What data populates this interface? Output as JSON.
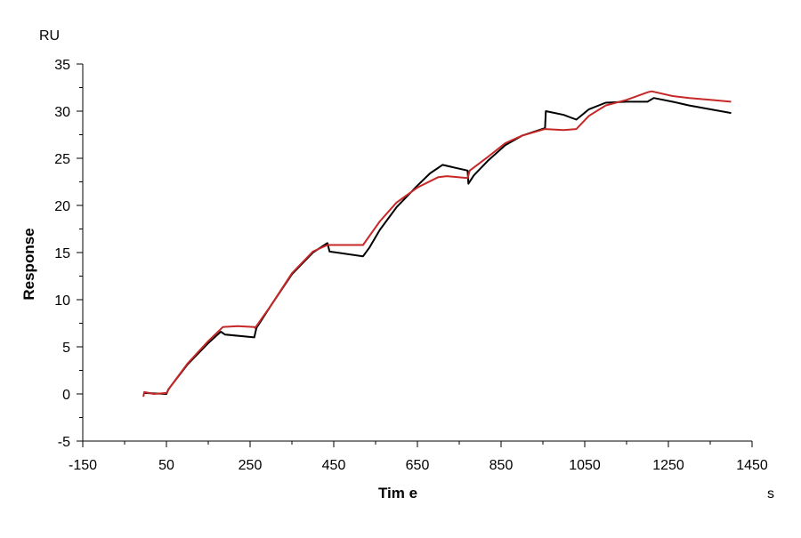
{
  "chart_data": {
    "type": "line",
    "title": "",
    "xlabel": "Tim e",
    "ylabel": "Response",
    "x_unit": "s",
    "y_unit": "RU",
    "xlim": [
      -150,
      1450
    ],
    "ylim": [
      -5,
      35
    ],
    "x_ticks": [
      -150,
      50,
      250,
      450,
      650,
      850,
      1050,
      1250,
      1450
    ],
    "y_ticks": [
      -5,
      0,
      5,
      10,
      15,
      20,
      25,
      30,
      35
    ],
    "x_tick_labels": [
      "-150",
      "50",
      "250",
      "450",
      "650",
      "850",
      "1050",
      "1250",
      "1450"
    ],
    "y_tick_labels": [
      "-5",
      "0",
      "5",
      "10",
      "15",
      "20",
      "25",
      "30",
      "35"
    ],
    "grid": false,
    "legend": "none",
    "series": [
      {
        "color": "#000000",
        "points": [
          [
            -5,
            0.1
          ],
          [
            50,
            0
          ],
          [
            55,
            0.5
          ],
          [
            100,
            3.1
          ],
          [
            150,
            5.4
          ],
          [
            180,
            6.6
          ],
          [
            190,
            6.3
          ],
          [
            260,
            6.0
          ],
          [
            265,
            7.0
          ],
          [
            300,
            9.4
          ],
          [
            350,
            12.7
          ],
          [
            400,
            15.0
          ],
          [
            435,
            16.0
          ],
          [
            440,
            15.1
          ],
          [
            520,
            14.6
          ],
          [
            535,
            15.5
          ],
          [
            560,
            17.4
          ],
          [
            600,
            19.8
          ],
          [
            650,
            22.1
          ],
          [
            680,
            23.4
          ],
          [
            710,
            24.3
          ],
          [
            770,
            23.7
          ],
          [
            772,
            22.3
          ],
          [
            785,
            23.2
          ],
          [
            820,
            24.8
          ],
          [
            860,
            26.4
          ],
          [
            900,
            27.4
          ],
          [
            955,
            28.2
          ],
          [
            957,
            30.0
          ],
          [
            1000,
            29.6
          ],
          [
            1030,
            29.1
          ],
          [
            1060,
            30.2
          ],
          [
            1100,
            30.9
          ],
          [
            1150,
            31.0
          ],
          [
            1200,
            31.0
          ],
          [
            1215,
            31.4
          ],
          [
            1260,
            31.0
          ],
          [
            1300,
            30.6
          ],
          [
            1350,
            30.2
          ],
          [
            1400,
            29.8
          ]
        ]
      },
      {
        "color": "#c62828",
        "points": [
          [
            -5,
            -0.3
          ],
          [
            -3,
            0.2
          ],
          [
            20,
            0
          ],
          [
            50,
            0.1
          ],
          [
            60,
            0.8
          ],
          [
            100,
            3.2
          ],
          [
            150,
            5.6
          ],
          [
            185,
            7.1
          ],
          [
            220,
            7.2
          ],
          [
            260,
            7.1
          ],
          [
            262,
            7.0
          ],
          [
            300,
            9.4
          ],
          [
            350,
            12.8
          ],
          [
            400,
            15.1
          ],
          [
            435,
            15.8
          ],
          [
            440,
            15.8
          ],
          [
            520,
            15.8
          ],
          [
            560,
            18.3
          ],
          [
            600,
            20.3
          ],
          [
            650,
            21.9
          ],
          [
            700,
            23.0
          ],
          [
            720,
            23.1
          ],
          [
            770,
            22.9
          ],
          [
            775,
            23.7
          ],
          [
            820,
            25.2
          ],
          [
            860,
            26.6
          ],
          [
            900,
            27.4
          ],
          [
            955,
            28.1
          ],
          [
            1000,
            28.0
          ],
          [
            1030,
            28.1
          ],
          [
            1060,
            29.5
          ],
          [
            1100,
            30.6
          ],
          [
            1150,
            31.2
          ],
          [
            1200,
            32.0
          ],
          [
            1210,
            32.1
          ],
          [
            1260,
            31.6
          ],
          [
            1300,
            31.4
          ],
          [
            1350,
            31.2
          ],
          [
            1400,
            31.0
          ]
        ]
      }
    ]
  }
}
